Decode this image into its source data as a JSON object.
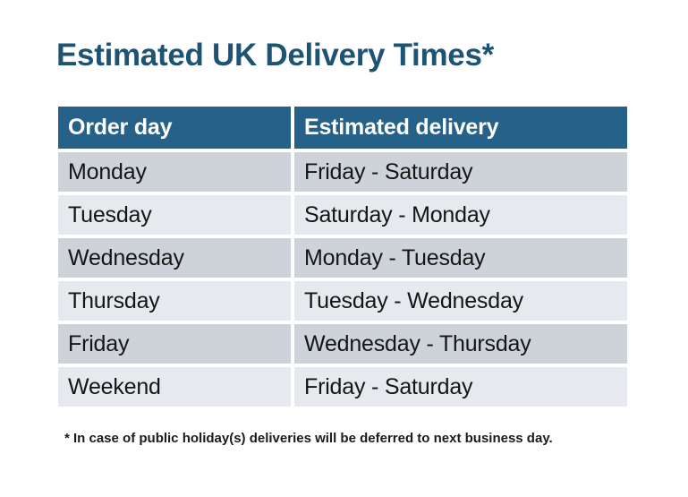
{
  "title": "Estimated UK Delivery Times*",
  "table": {
    "headers": [
      "Order day",
      "Estimated delivery"
    ],
    "rows": [
      {
        "order_day": "Monday",
        "estimated_delivery": "Friday - Saturday"
      },
      {
        "order_day": "Tuesday",
        "estimated_delivery": "Saturday - Monday"
      },
      {
        "order_day": "Wednesday",
        "estimated_delivery": "Monday - Tuesday"
      },
      {
        "order_day": "Thursday",
        "estimated_delivery": "Tuesday - Wednesday"
      },
      {
        "order_day": "Friday",
        "estimated_delivery": "Wednesday - Thursday"
      },
      {
        "order_day": "Weekend",
        "estimated_delivery": "Friday - Saturday"
      }
    ]
  },
  "footnote": "* In case of public holiday(s) deliveries will be deferred to next business day.",
  "colors": {
    "title_text": "#1e5473",
    "header_bg": "#266189",
    "header_text": "#ffffff",
    "row_odd_bg": "#ced3da",
    "row_even_bg": "#e6e9ed",
    "cell_text": "#151515",
    "page_bg": "#ffffff"
  }
}
